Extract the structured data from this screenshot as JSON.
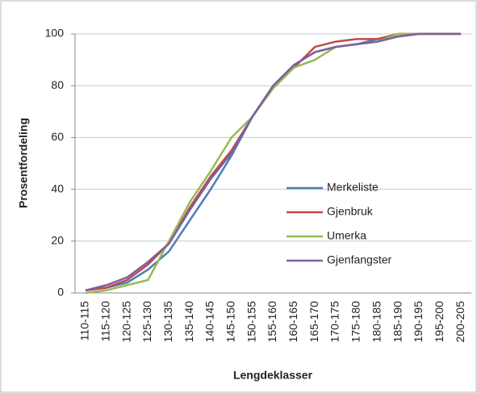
{
  "chart_data": {
    "type": "line",
    "x_label": "Lengdeklasser",
    "y_label": "Prosentfordeling",
    "categories": [
      "110-115",
      "115-120",
      "120-125",
      "125-130",
      "130-135",
      "135-140",
      "140-145",
      "145-150",
      "150-155",
      "155-160",
      "160-165",
      "165-170",
      "170-175",
      "175-180",
      "180-185",
      "185-190",
      "190-195",
      "195-200",
      "200-205"
    ],
    "series": [
      {
        "name": "Merkeliste",
        "color": "#4a7ebb",
        "values": [
          1,
          2,
          4,
          9,
          16,
          28,
          40,
          53,
          68,
          80,
          88,
          93,
          95,
          96,
          98,
          99,
          100,
          100,
          100
        ]
      },
      {
        "name": "Gjenbruk",
        "color": "#be4b48",
        "values": [
          1,
          2,
          5,
          11,
          19,
          33,
          45,
          55,
          68,
          80,
          87,
          95,
          97,
          98,
          98,
          100,
          100,
          100,
          100
        ]
      },
      {
        "name": "Umerka",
        "color": "#98b954",
        "values": [
          0,
          1,
          3,
          5,
          20,
          35,
          47,
          60,
          68,
          79,
          87,
          90,
          95,
          96,
          97,
          100,
          100,
          100,
          100
        ]
      },
      {
        "name": "Gjenfangster",
        "color": "#7d60a0",
        "values": [
          1,
          3,
          6,
          12,
          19,
          32,
          44,
          54,
          68,
          80,
          88,
          93,
          95,
          96,
          97,
          99,
          100,
          100,
          100
        ]
      }
    ],
    "ylim": [
      0,
      100
    ],
    "yticks": [
      0,
      20,
      40,
      60,
      80,
      100
    ],
    "grid": true
  }
}
